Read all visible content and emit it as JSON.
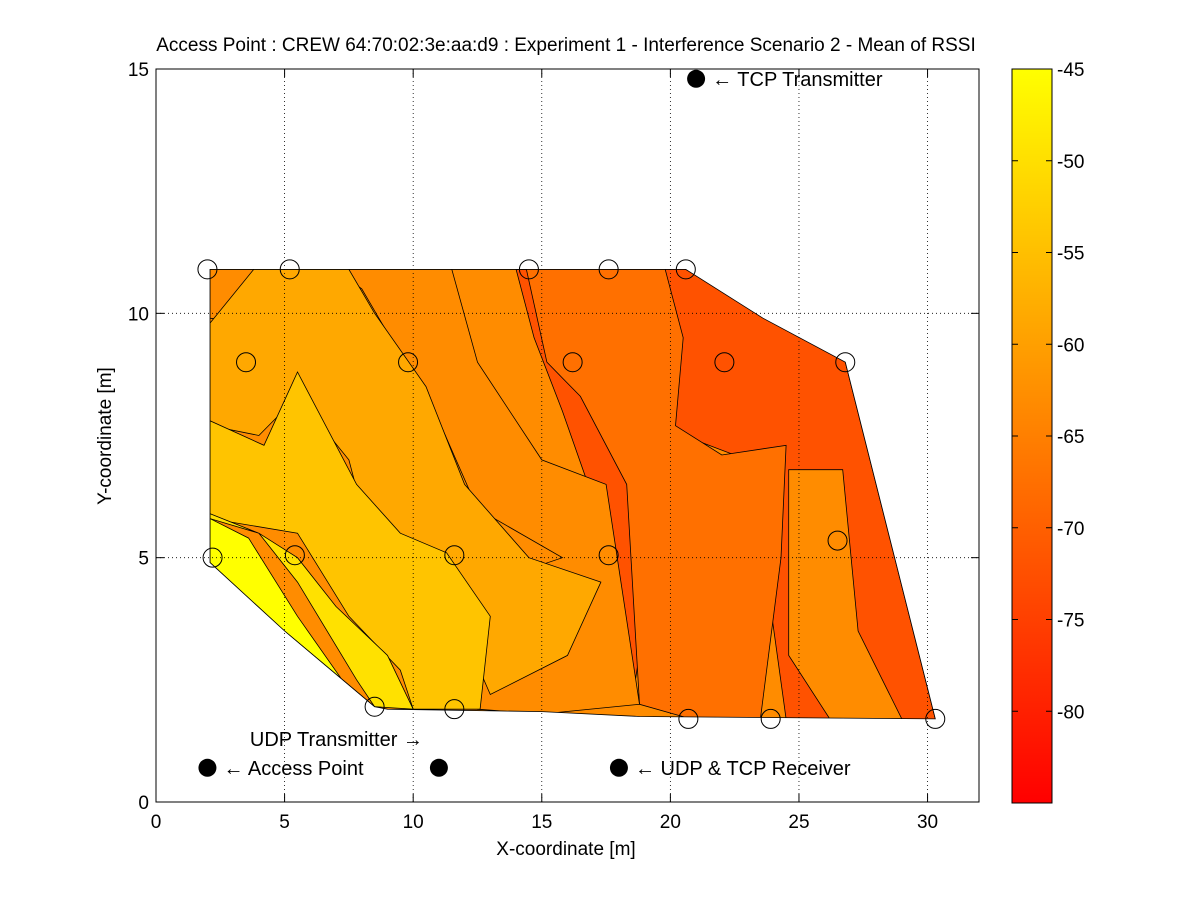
{
  "chart_data": {
    "type": "contour",
    "title": "Access Point : CREW 64:70:02:3e:aa:d9 : Experiment 1 - Interference Scenario 2 - Mean of RSSI",
    "xlabel": "X-coordinate [m]",
    "ylabel": "Y-coordinate [m]",
    "xlim": [
      0,
      32
    ],
    "ylim": [
      0,
      15
    ],
    "x_ticks": [
      0,
      5,
      10,
      15,
      20,
      25,
      30
    ],
    "y_ticks": [
      0,
      5,
      10,
      15
    ],
    "grid": true,
    "colorbar": {
      "colormap": "autumn",
      "range": [
        -85,
        -45
      ],
      "ticks": [
        -45,
        -50,
        -55,
        -60,
        -65,
        -70,
        -75,
        -80
      ],
      "low_color": "#ff0000",
      "high_color": "#ffff00"
    },
    "measurement_points": [
      {
        "x": 2.0,
        "y": 10.9
      },
      {
        "x": 5.2,
        "y": 10.9
      },
      {
        "x": 14.5,
        "y": 10.9
      },
      {
        "x": 17.6,
        "y": 10.9
      },
      {
        "x": 20.6,
        "y": 10.9
      },
      {
        "x": 3.5,
        "y": 9.0
      },
      {
        "x": 9.8,
        "y": 9.0
      },
      {
        "x": 16.2,
        "y": 9.0
      },
      {
        "x": 22.1,
        "y": 9.0
      },
      {
        "x": 26.8,
        "y": 9.0
      },
      {
        "x": 2.2,
        "y": 5.0
      },
      {
        "x": 5.4,
        "y": 5.05
      },
      {
        "x": 11.6,
        "y": 5.05
      },
      {
        "x": 17.6,
        "y": 5.05
      },
      {
        "x": 26.5,
        "y": 5.35
      },
      {
        "x": 8.5,
        "y": 1.95
      },
      {
        "x": 11.6,
        "y": 1.9
      },
      {
        "x": 20.7,
        "y": 1.7
      },
      {
        "x": 23.9,
        "y": 1.7
      },
      {
        "x": 30.3,
        "y": 1.7
      }
    ],
    "devices": [
      {
        "name": "TCP Transmitter",
        "label": "← TCP Transmitter",
        "x": 21.0,
        "y": 14.8
      },
      {
        "name": "Access Point",
        "label": "← Access Point",
        "x": 2.0,
        "y": 0.7
      },
      {
        "name": "UDP Transmitter",
        "label": "UDP Transmitter →",
        "x": 11.0,
        "y": 0.7
      },
      {
        "name": "UDP & TCP Receiver",
        "label": "← UDP & TCP Receiver",
        "x": 18.0,
        "y": 0.7
      }
    ],
    "contour_regions": [
      {
        "level": -82,
        "color": "#ff1700",
        "points": [
          [
            19.0,
            10.9
          ],
          [
            20.6,
            10.9
          ],
          [
            21.8,
            10.0
          ],
          [
            26.2,
            9.0
          ],
          [
            24.0,
            8.8
          ],
          [
            22.4,
            8.5
          ],
          [
            22.0,
            10.0
          ],
          [
            20.5,
            10.5
          ]
        ]
      },
      {
        "level": -78,
        "color": "#ff3800",
        "points": [
          [
            16.8,
            10.9
          ],
          [
            20.6,
            10.9
          ],
          [
            21.2,
            10.6
          ],
          [
            26.8,
            9.0
          ],
          [
            27.3,
            7.5
          ],
          [
            22.0,
            7.3
          ],
          [
            20.5,
            8.2
          ],
          [
            18.5,
            8.7
          ],
          [
            17.8,
            9.5
          ]
        ]
      },
      {
        "level": -74,
        "color": "#ff5200",
        "points": [
          [
            14.0,
            10.9
          ],
          [
            20.6,
            10.9
          ],
          [
            26.8,
            9.0
          ],
          [
            30.3,
            1.7
          ],
          [
            24.5,
            1.7
          ],
          [
            23.5,
            5.5
          ],
          [
            22.5,
            7.1
          ],
          [
            20.5,
            7.5
          ],
          [
            19.8,
            7.8
          ],
          [
            19.5,
            5.5
          ],
          [
            18.5,
            2.0
          ],
          [
            17.5,
            3.5
          ],
          [
            16.8,
            6.5
          ],
          [
            15.8,
            8.0
          ],
          [
            14.7,
            9.5
          ]
        ]
      },
      {
        "level": -70,
        "color": "#ff7000",
        "points": [
          [
            11.2,
            10.9
          ],
          [
            14.4,
            10.9
          ],
          [
            15.2,
            9.0
          ],
          [
            16.5,
            8.3
          ],
          [
            18.3,
            6.5
          ],
          [
            18.8,
            2.0
          ],
          [
            20.8,
            1.7
          ],
          [
            23.5,
            1.7
          ],
          [
            24.3,
            5.0
          ],
          [
            24.5,
            7.3
          ],
          [
            22.0,
            7.1
          ],
          [
            20.2,
            7.7
          ],
          [
            20.5,
            9.5
          ],
          [
            19.8,
            10.9
          ],
          [
            13.0,
            10.9
          ]
        ]
      },
      {
        "level": -66,
        "color": "#ff8c00",
        "points": [
          [
            2.1,
            10.9
          ],
          [
            3.8,
            10.9
          ],
          [
            3.5,
            9.8
          ],
          [
            2.1,
            9.9
          ]
        ]
      },
      {
        "level": -66,
        "color": "#ff8c00",
        "points": [
          [
            7.0,
            10.9
          ],
          [
            11.5,
            10.9
          ],
          [
            12.5,
            9.0
          ],
          [
            15.0,
            7.0
          ],
          [
            17.5,
            6.5
          ],
          [
            18.8,
            2.0
          ],
          [
            15.0,
            1.8
          ],
          [
            12.5,
            1.9
          ],
          [
            13.0,
            4.5
          ],
          [
            15.8,
            5.0
          ],
          [
            12.5,
            6.0
          ],
          [
            11.0,
            7.8
          ],
          [
            9.0,
            9.6
          ],
          [
            8.0,
            10.5
          ]
        ]
      },
      {
        "level": -66,
        "color": "#ff8c00",
        "points": [
          [
            24.6,
            6.8
          ],
          [
            26.7,
            6.8
          ],
          [
            27.3,
            3.5
          ],
          [
            29.0,
            1.7
          ],
          [
            26.2,
            1.7
          ],
          [
            24.6,
            3.0
          ]
        ]
      },
      {
        "level": -62,
        "color": "#ffa800",
        "points": [
          [
            2.1,
            9.8
          ],
          [
            3.8,
            10.9
          ],
          [
            7.5,
            10.9
          ],
          [
            8.5,
            10.0
          ],
          [
            10.5,
            8.5
          ],
          [
            12.0,
            6.5
          ],
          [
            14.5,
            5.0
          ],
          [
            17.3,
            4.5
          ],
          [
            16.0,
            3.0
          ],
          [
            13.0,
            2.2
          ],
          [
            12.5,
            2.8
          ],
          [
            10.0,
            3.5
          ],
          [
            8.5,
            5.0
          ],
          [
            7.5,
            7.0
          ],
          [
            5.5,
            8.3
          ],
          [
            4.0,
            7.5
          ],
          [
            2.1,
            7.7
          ]
        ]
      },
      {
        "level": -58,
        "color": "#ffc400",
        "points": [
          [
            2.1,
            7.8
          ],
          [
            4.2,
            7.3
          ],
          [
            5.5,
            8.8
          ],
          [
            7.8,
            6.5
          ],
          [
            9.5,
            5.5
          ],
          [
            11.3,
            5.1
          ],
          [
            13.0,
            3.8
          ],
          [
            12.6,
            1.9
          ],
          [
            10.0,
            1.9
          ],
          [
            9.5,
            2.7
          ],
          [
            7.5,
            3.8
          ],
          [
            5.5,
            5.5
          ],
          [
            2.1,
            5.8
          ]
        ]
      },
      {
        "level": -53,
        "color": "#ffe100",
        "points": [
          [
            2.1,
            5.8
          ],
          [
            4.0,
            5.5
          ],
          [
            5.5,
            4.5
          ],
          [
            7.8,
            2.5
          ],
          [
            8.5,
            1.95
          ],
          [
            10.0,
            1.9
          ],
          [
            9.0,
            3.0
          ],
          [
            7.0,
            4.0
          ],
          [
            5.5,
            5.0
          ],
          [
            4.0,
            5.5
          ],
          [
            2.1,
            5.9
          ]
        ]
      },
      {
        "level": -47,
        "color": "#ffff00",
        "points": [
          [
            2.1,
            5.8
          ],
          [
            3.6,
            5.4
          ],
          [
            5.5,
            3.8
          ],
          [
            7.5,
            2.3
          ],
          [
            8.5,
            1.95
          ],
          [
            5.0,
            3.5
          ],
          [
            2.1,
            4.9
          ]
        ]
      }
    ],
    "region_outline": [
      [
        2.1,
        10.9
      ],
      [
        20.6,
        10.9
      ],
      [
        23.6,
        9.9
      ],
      [
        26.8,
        9.0
      ],
      [
        30.3,
        1.7
      ],
      [
        18.8,
        1.75
      ],
      [
        15.0,
        1.85
      ],
      [
        9.0,
        1.9
      ],
      [
        8.5,
        1.95
      ],
      [
        5.0,
        3.5
      ],
      [
        2.1,
        4.9
      ]
    ]
  }
}
